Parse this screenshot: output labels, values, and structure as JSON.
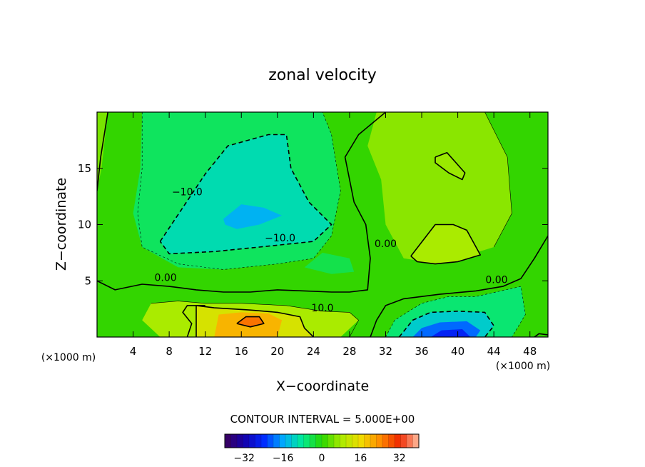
{
  "chart_data": {
    "type": "heatmap",
    "title": "zonal velocity",
    "xlabel": "X−coordinate",
    "ylabel": "Z−coordinate",
    "x_unit_left": "(×1000 m)",
    "x_unit_right": "(×1000 m)",
    "xlim": [
      0,
      50
    ],
    "ylim": [
      0,
      20
    ],
    "x_ticks": [
      4,
      8,
      12,
      16,
      20,
      24,
      28,
      32,
      36,
      40,
      44,
      48
    ],
    "y_ticks": [
      5,
      10,
      15
    ],
    "contour_interval_label": "CONTOUR INTERVAL = 5.000E+00",
    "colorbar": {
      "range": [
        -40,
        40
      ],
      "ticks": [
        -32,
        -16,
        0,
        16,
        32
      ],
      "tick_labels": [
        "−32",
        "−16",
        "0",
        "16",
        "32"
      ]
    },
    "contour_labels": [
      {
        "text": "−10.0",
        "x": 10.0,
        "y": 12.6
      },
      {
        "text": "−10.0",
        "x": 20.3,
        "y": 8.5
      },
      {
        "text": "0.00",
        "x": 7.6,
        "y": 5.0
      },
      {
        "text": "0.00",
        "x": 32.0,
        "y": 8.0
      },
      {
        "text": "0.00",
        "x": 44.3,
        "y": 4.8
      },
      {
        "text": "10.0",
        "x": 25.0,
        "y": 2.3
      }
    ],
    "color_regions": [
      {
        "name": "positive-top-left",
        "value": 5,
        "polygon": [
          [
            0,
            20
          ],
          [
            1.2,
            20
          ],
          [
            0.5,
            15
          ],
          [
            0,
            13
          ]
        ]
      },
      {
        "name": "negative-outer",
        "value": -5,
        "polygon": [
          [
            5,
            20
          ],
          [
            25,
            20
          ],
          [
            26,
            18
          ],
          [
            27,
            13
          ],
          [
            26,
            9
          ],
          [
            24,
            7
          ],
          [
            20,
            6.5
          ],
          [
            14,
            6
          ],
          [
            9,
            6.2
          ],
          [
            5,
            8
          ],
          [
            4,
            11
          ],
          [
            4.8,
            15
          ]
        ]
      },
      {
        "name": "negative-10",
        "value": -10,
        "polygon": [
          [
            7,
            8.5
          ],
          [
            9.5,
            11.5
          ],
          [
            12,
            14.5
          ],
          [
            14.5,
            17
          ],
          [
            19,
            18
          ],
          [
            21,
            18
          ],
          [
            21.5,
            15
          ],
          [
            23.5,
            12
          ],
          [
            26,
            10
          ],
          [
            24,
            8.5
          ],
          [
            18,
            8
          ],
          [
            13,
            7.6
          ],
          [
            8,
            7.4
          ]
        ]
      },
      {
        "name": "negative-15",
        "value": -15,
        "polygon": [
          [
            14,
            10.5
          ],
          [
            16,
            11.8
          ],
          [
            18.5,
            11.5
          ],
          [
            20.5,
            10.8
          ],
          [
            18,
            10
          ],
          [
            15.5,
            9.6
          ],
          [
            14.2,
            10
          ]
        ]
      },
      {
        "name": "negative-lower-band",
        "value": -4,
        "polygon": [
          [
            25,
            7.5
          ],
          [
            28,
            7
          ],
          [
            28.5,
            5.8
          ],
          [
            26,
            5.6
          ],
          [
            23,
            6.2
          ]
        ]
      },
      {
        "name": "positive-right",
        "value": 6,
        "polygon": [
          [
            31,
            20
          ],
          [
            43,
            20
          ],
          [
            45.5,
            16
          ],
          [
            46,
            11
          ],
          [
            44,
            8
          ],
          [
            38,
            6.5
          ],
          [
            34,
            7
          ],
          [
            32,
            10
          ],
          [
            31.5,
            14
          ],
          [
            30,
            17
          ]
        ]
      },
      {
        "name": "positive-right-5",
        "value": 8,
        "polygon": [
          [
            34.8,
            7.2
          ],
          [
            37.5,
            10
          ],
          [
            39.5,
            10
          ],
          [
            41,
            9.5
          ],
          [
            42.5,
            7.3
          ],
          [
            40,
            6.7
          ],
          [
            37.5,
            6.5
          ],
          [
            35.5,
            6.7
          ]
        ]
      },
      {
        "name": "positive-right-ellipse",
        "value": 7,
        "polygon": [
          [
            37.5,
            16
          ],
          [
            38.8,
            16.4
          ],
          [
            40.8,
            14.6
          ],
          [
            40.5,
            14
          ],
          [
            39,
            14.6
          ],
          [
            37.5,
            15.5
          ]
        ]
      },
      {
        "name": "positive-bottom",
        "value": 8,
        "polygon": [
          [
            6,
            3
          ],
          [
            9,
            3.2
          ],
          [
            12,
            3
          ],
          [
            16,
            3
          ],
          [
            21,
            2.8
          ],
          [
            25,
            2.3
          ],
          [
            28,
            2.2
          ],
          [
            29,
            1.5
          ],
          [
            27,
            0
          ],
          [
            7,
            0
          ],
          [
            5,
            1.5
          ]
        ]
      },
      {
        "name": "positive-bottom-10",
        "value": 13,
        "polygon": [
          [
            11,
            0
          ],
          [
            11,
            2.8
          ],
          [
            13,
            2.6
          ],
          [
            17,
            2.4
          ],
          [
            20,
            2.2
          ],
          [
            22.5,
            1.8
          ],
          [
            23,
            0.8
          ],
          [
            24,
            0
          ]
        ]
      },
      {
        "name": "positive-bottom-15",
        "value": 20,
        "polygon": [
          [
            13,
            0
          ],
          [
            13.5,
            2
          ],
          [
            16,
            2.2
          ],
          [
            19,
            2.1
          ],
          [
            20.5,
            1.5
          ],
          [
            20,
            0
          ]
        ]
      },
      {
        "name": "positive-bottom-20",
        "value": 26,
        "polygon": [
          [
            15.5,
            1.2
          ],
          [
            16.5,
            1.8
          ],
          [
            18,
            1.8
          ],
          [
            18.5,
            1.2
          ],
          [
            17,
            0.9
          ]
        ]
      },
      {
        "name": "negative-bottom-right-outer",
        "value": -6,
        "polygon": [
          [
            32,
            0
          ],
          [
            33,
            1.5
          ],
          [
            36,
            3
          ],
          [
            39,
            3.6
          ],
          [
            42,
            3.6
          ],
          [
            47,
            4.5
          ],
          [
            47.5,
            2
          ],
          [
            46,
            0
          ]
        ]
      },
      {
        "name": "negative-bottom-right-10",
        "value": -12,
        "polygon": [
          [
            33.5,
            0
          ],
          [
            35,
            1.5
          ],
          [
            37,
            2.2
          ],
          [
            40,
            2.3
          ],
          [
            43,
            2.2
          ],
          [
            44,
            1
          ],
          [
            43,
            0
          ]
        ]
      },
      {
        "name": "negative-bottom-right-15",
        "value": -20,
        "polygon": [
          [
            35,
            0
          ],
          [
            36,
            0.8
          ],
          [
            38,
            1.3
          ],
          [
            41,
            1.4
          ],
          [
            42.5,
            0.6
          ],
          [
            42,
            0
          ]
        ]
      },
      {
        "name": "negative-bottom-right-20",
        "value": -25,
        "polygon": [
          [
            37,
            0
          ],
          [
            38.2,
            0.6
          ],
          [
            40.5,
            0.7
          ],
          [
            41.4,
            0
          ]
        ]
      }
    ],
    "contour_lines": [
      {
        "level": 0,
        "style": "solid-thick",
        "points": [
          [
            0,
            5
          ],
          [
            2,
            4.2
          ],
          [
            5,
            4.7
          ],
          [
            8,
            4.5
          ],
          [
            11,
            4.2
          ],
          [
            14,
            4.0
          ],
          [
            17,
            4.0
          ],
          [
            20,
            4.2
          ],
          [
            23,
            4.1
          ],
          [
            26,
            4.0
          ],
          [
            28,
            4.0
          ],
          [
            30,
            4.2
          ],
          [
            30.3,
            7
          ],
          [
            29.8,
            10
          ],
          [
            28.5,
            12
          ],
          [
            28,
            14
          ],
          [
            27.5,
            16
          ],
          [
            29,
            18
          ],
          [
            32,
            20
          ]
        ]
      },
      {
        "level": 0,
        "style": "solid-thick",
        "points": [
          [
            0,
            13
          ],
          [
            0.4,
            16
          ],
          [
            1.2,
            20
          ]
        ]
      },
      {
        "level": 0,
        "style": "solid-thick",
        "points": [
          [
            30.3,
            0
          ],
          [
            31,
            1.5
          ],
          [
            32,
            2.8
          ],
          [
            34,
            3.4
          ],
          [
            38,
            3.8
          ],
          [
            42,
            4.1
          ],
          [
            45,
            4.5
          ],
          [
            47,
            5.2
          ],
          [
            48.5,
            7
          ],
          [
            50,
            9
          ]
        ]
      },
      {
        "level": 0,
        "style": "solid-thick",
        "points": [
          [
            10,
            0
          ],
          [
            10.5,
            1.2
          ],
          [
            9.5,
            2.2
          ],
          [
            10,
            2.8
          ],
          [
            12,
            2.8
          ]
        ]
      },
      {
        "level": 0,
        "style": "solid-thick",
        "points": [
          [
            48.5,
            0
          ],
          [
            49,
            0.3
          ],
          [
            50,
            0.2
          ]
        ]
      },
      {
        "level": -10,
        "style": "dashed-thick",
        "points": [
          [
            7,
            8.5
          ],
          [
            9.5,
            11.5
          ],
          [
            12,
            14.5
          ],
          [
            14.5,
            17
          ],
          [
            19,
            18
          ],
          [
            21,
            18
          ],
          [
            21.5,
            15
          ],
          [
            23.5,
            12
          ],
          [
            26,
            10
          ],
          [
            24,
            8.5
          ],
          [
            18,
            8
          ],
          [
            13,
            7.6
          ],
          [
            8,
            7.4
          ],
          [
            7,
            8.5
          ]
        ]
      },
      {
        "level": -10,
        "style": "dashed-thick",
        "points": [
          [
            33.5,
            0
          ],
          [
            35,
            1.5
          ],
          [
            37,
            2.2
          ],
          [
            40,
            2.3
          ],
          [
            43,
            2.2
          ],
          [
            44,
            1
          ],
          [
            43,
            0
          ]
        ]
      },
      {
        "level": -5,
        "style": "dashed-thin",
        "points": [
          [
            5,
            20
          ],
          [
            5,
            15
          ],
          [
            4.5,
            11
          ],
          [
            5,
            8
          ],
          [
            9,
            6.5
          ],
          [
            14,
            6
          ],
          [
            20,
            6.5
          ],
          [
            24,
            7
          ],
          [
            26,
            9
          ],
          [
            27,
            13
          ],
          [
            26,
            18
          ],
          [
            25,
            20
          ]
        ]
      },
      {
        "level": -5,
        "style": "dashed-thin",
        "points": [
          [
            32,
            0
          ],
          [
            33,
            1.5
          ],
          [
            36,
            3
          ],
          [
            39,
            3.6
          ],
          [
            42,
            3.6
          ],
          [
            47,
            4.5
          ],
          [
            47.5,
            2
          ],
          [
            46,
            0
          ]
        ]
      },
      {
        "level": 5,
        "style": "solid-thin",
        "points": [
          [
            31,
            20
          ],
          [
            43,
            20
          ],
          [
            45.5,
            16
          ],
          [
            46,
            11
          ],
          [
            44,
            8
          ]
        ]
      },
      {
        "level": 5,
        "style": "solid-thin",
        "points": [
          [
            6,
            3
          ],
          [
            9,
            3.2
          ],
          [
            12,
            3
          ],
          [
            16,
            3
          ],
          [
            21,
            2.8
          ],
          [
            25,
            2.3
          ],
          [
            28,
            2.2
          ],
          [
            29,
            1.5
          ],
          [
            28,
            0
          ]
        ]
      },
      {
        "level": 10,
        "style": "solid-thick",
        "points": [
          [
            11,
            0
          ],
          [
            11,
            2.8
          ],
          [
            13,
            2.6
          ],
          [
            17,
            2.4
          ],
          [
            20,
            2.2
          ],
          [
            22.5,
            1.8
          ],
          [
            23,
            0.8
          ],
          [
            24,
            0
          ]
        ]
      },
      {
        "level": 10,
        "style": "solid-thick",
        "points": [
          [
            34.8,
            7.2
          ],
          [
            37.5,
            10
          ],
          [
            39.5,
            10
          ],
          [
            41,
            9.5
          ],
          [
            42.5,
            7.3
          ],
          [
            40,
            6.7
          ],
          [
            37.5,
            6.5
          ],
          [
            35.5,
            6.7
          ],
          [
            34.8,
            7.2
          ]
        ]
      },
      {
        "level": 10,
        "style": "solid-thick",
        "points": [
          [
            37.5,
            16
          ],
          [
            38.8,
            16.4
          ],
          [
            40.8,
            14.6
          ],
          [
            40.5,
            14
          ],
          [
            39,
            14.6
          ],
          [
            37.5,
            15.5
          ],
          [
            37.5,
            16
          ]
        ]
      },
      {
        "level": 20,
        "style": "solid-thick",
        "points": [
          [
            15.5,
            1.2
          ],
          [
            16.5,
            1.8
          ],
          [
            18,
            1.8
          ],
          [
            18.5,
            1.2
          ],
          [
            17,
            0.9
          ],
          [
            15.5,
            1.2
          ]
        ]
      }
    ]
  }
}
